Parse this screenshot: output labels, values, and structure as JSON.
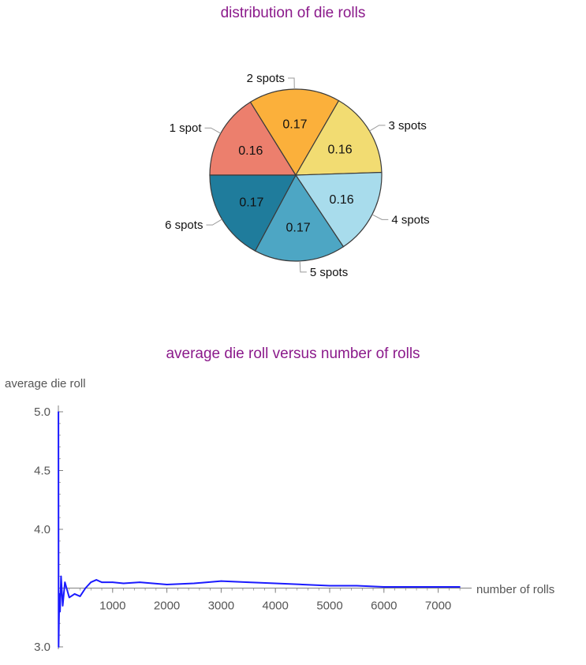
{
  "colors": {
    "title": "#8b1a8b",
    "line": "#1a1aff",
    "axis": "#808080",
    "tick_text": "#555555",
    "slice_outline": "#3a3a3a"
  },
  "chart_data": [
    {
      "type": "pie",
      "title": "distribution of die rolls",
      "slices": [
        {
          "name": "1 spot",
          "value": 0.16,
          "label": "0.16",
          "color": "#ec7f6d"
        },
        {
          "name": "2 spots",
          "value": 0.17,
          "label": "0.17",
          "color": "#fbb03b"
        },
        {
          "name": "3 spots",
          "value": 0.16,
          "label": "0.16",
          "color": "#f2dc72"
        },
        {
          "name": "4 spots",
          "value": 0.16,
          "label": "0.16",
          "color": "#a8dcec"
        },
        {
          "name": "5 spots",
          "value": 0.17,
          "label": "0.17",
          "color": "#4da6c4"
        },
        {
          "name": "6 spots",
          "value": 0.17,
          "label": "0.17",
          "color": "#1f7c9c"
        }
      ]
    },
    {
      "type": "line",
      "title": "average die roll versus number of rolls",
      "xlabel": "number of rolls",
      "ylabel": "average die roll",
      "xlim": [
        0,
        7500
      ],
      "ylim": [
        3.0,
        5.0
      ],
      "axis_origin_y": 3.5,
      "xticks": [
        1000,
        2000,
        3000,
        4000,
        5000,
        6000,
        7000
      ],
      "xtick_labels": [
        "1000",
        "2000",
        "3000",
        "4000",
        "5000",
        "6000",
        "7000"
      ],
      "yticks": [
        3.0,
        4.0,
        4.5,
        5.0
      ],
      "ytick_labels": [
        "3.0",
        "4.0",
        "4.5",
        "5.0"
      ],
      "series": [
        {
          "x": [
            1,
            5,
            10,
            20,
            30,
            50,
            80,
            120,
            200,
            300,
            400,
            500,
            600,
            700,
            800,
            1000,
            1200,
            1500,
            2000,
            2500,
            3000,
            3500,
            4000,
            4500,
            5000,
            5500,
            6000,
            6500,
            7000,
            7400
          ],
          "y": [
            5.0,
            3.0,
            3.2,
            3.45,
            3.3,
            3.6,
            3.35,
            3.55,
            3.42,
            3.45,
            3.43,
            3.5,
            3.55,
            3.57,
            3.55,
            3.55,
            3.54,
            3.55,
            3.53,
            3.54,
            3.56,
            3.55,
            3.54,
            3.53,
            3.52,
            3.52,
            3.51,
            3.51,
            3.51,
            3.51
          ]
        }
      ]
    }
  ]
}
